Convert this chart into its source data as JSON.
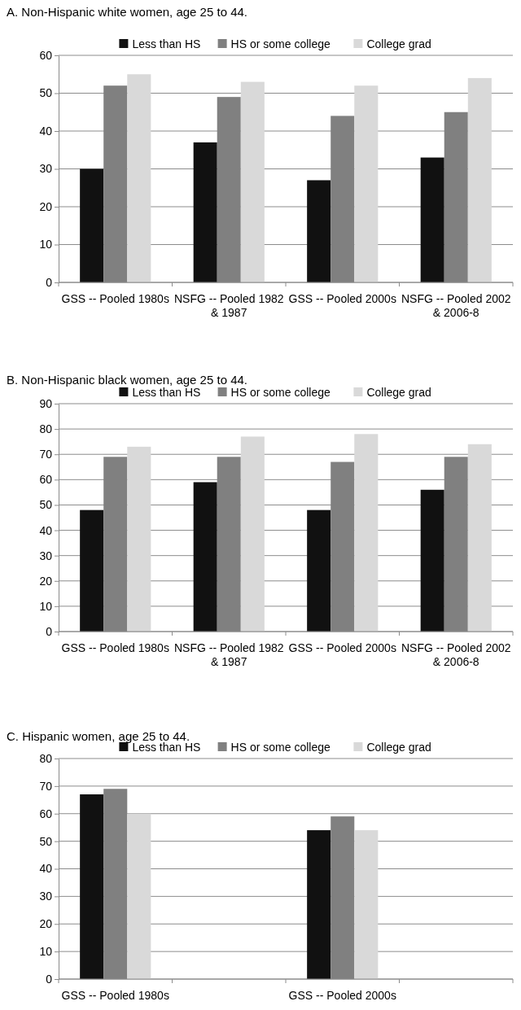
{
  "chart_data": [
    {
      "type": "bar",
      "title": "A. Non-Hispanic white women, age 25 to 44.",
      "categories": [
        "GSS -- Pooled 1980s",
        "NSFG -- Pooled 1982 & 1987",
        "GSS -- Pooled 2000s",
        "NSFG -- Pooled 2002 & 2006-8"
      ],
      "series": [
        {
          "name": "Less than HS",
          "color": "#111111",
          "values": [
            30,
            37,
            27,
            33
          ]
        },
        {
          "name": "HS or some college",
          "color": "#808080",
          "values": [
            52,
            49,
            44,
            45
          ]
        },
        {
          "name": "College grad",
          "color": "#d9d9d9",
          "values": [
            55,
            53,
            52,
            54
          ]
        }
      ],
      "ylim": [
        0,
        60
      ],
      "yticks": [
        0,
        10,
        20,
        30,
        40,
        50,
        60
      ],
      "grid": "y",
      "legend": "top"
    },
    {
      "type": "bar",
      "title": "B. Non-Hispanic black women, age 25 to 44.",
      "categories": [
        "GSS -- Pooled 1980s",
        "NSFG -- Pooled 1982 & 1987",
        "GSS -- Pooled 2000s",
        "NSFG -- Pooled 2002 & 2006-8"
      ],
      "series": [
        {
          "name": "Less than HS",
          "color": "#111111",
          "values": [
            48,
            59,
            48,
            56
          ]
        },
        {
          "name": "HS or some college",
          "color": "#808080",
          "values": [
            69,
            69,
            67,
            69
          ]
        },
        {
          "name": "College grad",
          "color": "#d9d9d9",
          "values": [
            73,
            77,
            78,
            74
          ]
        }
      ],
      "ylim": [
        0,
        90
      ],
      "yticks": [
        0,
        10,
        20,
        30,
        40,
        50,
        60,
        70,
        80,
        90
      ],
      "grid": "y",
      "legend": "top"
    },
    {
      "type": "bar",
      "title": "C. Hispanic women, age 25 to 44.",
      "categories": [
        "GSS -- Pooled 1980s",
        null,
        "GSS -- Pooled 2000s",
        null
      ],
      "series": [
        {
          "name": "Less than HS",
          "color": "#111111",
          "values": [
            67,
            null,
            54,
            null
          ]
        },
        {
          "name": "HS or some college",
          "color": "#808080",
          "values": [
            69,
            null,
            59,
            null
          ]
        },
        {
          "name": "College grad",
          "color": "#d9d9d9",
          "values": [
            60,
            null,
            54,
            null
          ]
        }
      ],
      "ylim": [
        0,
        80
      ],
      "yticks": [
        0,
        10,
        20,
        30,
        40,
        50,
        60,
        70,
        80
      ],
      "grid": "y",
      "legend": "top"
    }
  ]
}
